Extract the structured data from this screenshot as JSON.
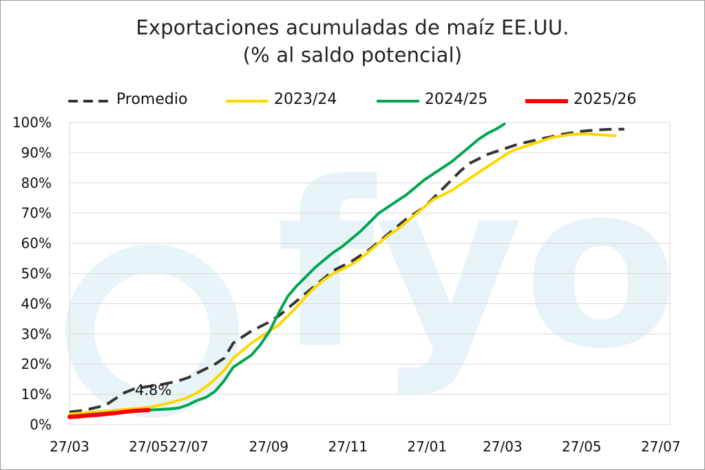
{
  "chart_data": {
    "type": "line",
    "title": "Exportaciones acumuladas de maíz EE.UU.",
    "subtitle": "(% al saldo potencial)",
    "xlabel": "",
    "ylabel": "",
    "x_range": [
      0,
      61
    ],
    "ylim": [
      0,
      100
    ],
    "y_ticks": [
      {
        "v": 0,
        "label": "0%"
      },
      {
        "v": 10,
        "label": "10%"
      },
      {
        "v": 20,
        "label": "20%"
      },
      {
        "v": 30,
        "label": "30%"
      },
      {
        "v": 40,
        "label": "40%"
      },
      {
        "v": 50,
        "label": "50%"
      },
      {
        "v": 60,
        "label": "60%"
      },
      {
        "v": 70,
        "label": "70%"
      },
      {
        "v": 80,
        "label": "80%"
      },
      {
        "v": 90,
        "label": "90%"
      },
      {
        "v": 100,
        "label": "100%"
      }
    ],
    "x_ticks": [
      {
        "v": 0,
        "label": "27/03"
      },
      {
        "v": 8.7,
        "label": "27/05"
      },
      {
        "v": 13.1,
        "label": "27/07"
      },
      {
        "v": 21.9,
        "label": "27/09"
      },
      {
        "v": 30.6,
        "label": "27/11"
      },
      {
        "v": 39.3,
        "label": "27/01"
      },
      {
        "v": 47.6,
        "label": "27/03"
      },
      {
        "v": 56.3,
        "label": "27/05"
      },
      {
        "v": 65,
        "label": "27/07"
      }
    ],
    "grid": true,
    "legend_position": "top",
    "annotation": {
      "text": "4.8%",
      "x": 8.5,
      "y": 11.5
    },
    "watermark": "fyo",
    "series": [
      {
        "name": "Promedio",
        "color": "#333333",
        "dash": true,
        "points": [
          [
            0,
            4.2
          ],
          [
            1,
            4.5
          ],
          [
            2,
            5
          ],
          [
            3,
            5.7
          ],
          [
            4,
            6.5
          ],
          [
            5,
            8.5
          ],
          [
            6,
            10.5
          ],
          [
            7,
            11.7
          ],
          [
            8,
            12.3
          ],
          [
            9,
            12.8
          ],
          [
            10,
            13.2
          ],
          [
            11,
            13.8
          ],
          [
            12,
            14.5
          ],
          [
            13,
            15.5
          ],
          [
            14,
            17
          ],
          [
            15,
            18.5
          ],
          [
            16,
            20
          ],
          [
            17,
            22
          ],
          [
            18,
            27
          ],
          [
            19,
            29
          ],
          [
            20,
            31
          ],
          [
            21,
            32.5
          ],
          [
            22,
            34
          ],
          [
            23,
            36
          ],
          [
            24,
            38.5
          ],
          [
            25,
            41
          ],
          [
            26,
            43.5
          ],
          [
            27,
            46
          ],
          [
            28,
            48.5
          ],
          [
            29,
            51
          ],
          [
            30,
            52.5
          ],
          [
            31,
            54
          ],
          [
            32,
            56
          ],
          [
            33,
            58
          ],
          [
            34,
            60.5
          ],
          [
            35,
            63
          ],
          [
            36,
            65.5
          ],
          [
            37,
            68
          ],
          [
            38,
            70
          ],
          [
            39,
            72
          ],
          [
            40,
            75
          ],
          [
            41,
            78
          ],
          [
            42,
            81
          ],
          [
            43,
            84
          ],
          [
            44,
            86.5
          ],
          [
            45,
            88
          ],
          [
            46,
            89.5
          ],
          [
            47,
            90.5
          ],
          [
            48,
            91.5
          ],
          [
            49,
            92.5
          ],
          [
            50,
            93.3
          ],
          [
            51,
            94
          ],
          [
            52,
            94.7
          ],
          [
            53,
            95.3
          ],
          [
            54,
            96
          ],
          [
            55,
            96.5
          ],
          [
            56,
            97
          ],
          [
            57,
            97.3
          ],
          [
            58,
            97.5
          ],
          [
            59,
            97.7
          ],
          [
            60,
            97.8
          ],
          [
            61,
            97.8
          ]
        ]
      },
      {
        "name": "2023/24",
        "color": "#FFD700",
        "dash": false,
        "points": [
          [
            0,
            3.5
          ],
          [
            2,
            4
          ],
          [
            4,
            4.5
          ],
          [
            6,
            5
          ],
          [
            8,
            5.5
          ],
          [
            9,
            5.8
          ],
          [
            10,
            6.5
          ],
          [
            11,
            7.2
          ],
          [
            12,
            8
          ],
          [
            13,
            9
          ],
          [
            14,
            10.5
          ],
          [
            15,
            12.5
          ],
          [
            16,
            15
          ],
          [
            17,
            18
          ],
          [
            18,
            22
          ],
          [
            19,
            24.5
          ],
          [
            20,
            27
          ],
          [
            21,
            29
          ],
          [
            22,
            31
          ],
          [
            23,
            33
          ],
          [
            24,
            36
          ],
          [
            25,
            39
          ],
          [
            26,
            42.5
          ],
          [
            27,
            45.5
          ],
          [
            28,
            48
          ],
          [
            29,
            50
          ],
          [
            30,
            51.5
          ],
          [
            31,
            53
          ],
          [
            32,
            55
          ],
          [
            33,
            57.5
          ],
          [
            34,
            60
          ],
          [
            35,
            62.5
          ],
          [
            36,
            64.5
          ],
          [
            37,
            67
          ],
          [
            38,
            69.5
          ],
          [
            39,
            72
          ],
          [
            40,
            74.5
          ],
          [
            41,
            76
          ],
          [
            42,
            77.5
          ],
          [
            43,
            79.5
          ],
          [
            44,
            81.5
          ],
          [
            45,
            83.5
          ],
          [
            46,
            85.5
          ],
          [
            47,
            87.5
          ],
          [
            48,
            89.5
          ],
          [
            49,
            91
          ],
          [
            50,
            92
          ],
          [
            51,
            93
          ],
          [
            52,
            94
          ],
          [
            53,
            95
          ],
          [
            54,
            95.5
          ],
          [
            55,
            96
          ],
          [
            56,
            96.2
          ],
          [
            57,
            96.2
          ],
          [
            58,
            96
          ],
          [
            59,
            95.8
          ],
          [
            60,
            95.6
          ]
        ]
      },
      {
        "name": "2024/25",
        "color": "#00A550",
        "dash": false,
        "points": [
          [
            0,
            2.8
          ],
          [
            2,
            3.3
          ],
          [
            4,
            3.8
          ],
          [
            6,
            4.3
          ],
          [
            8,
            4.7
          ],
          [
            10,
            5
          ],
          [
            11,
            5.2
          ],
          [
            12,
            5.5
          ],
          [
            13,
            6.5
          ],
          [
            14,
            8
          ],
          [
            15,
            9
          ],
          [
            16,
            11
          ],
          [
            17,
            14.5
          ],
          [
            18,
            19
          ],
          [
            19,
            21
          ],
          [
            20,
            23
          ],
          [
            21,
            26.5
          ],
          [
            22,
            31
          ],
          [
            23,
            37
          ],
          [
            24,
            42.5
          ],
          [
            25,
            46
          ],
          [
            26,
            49
          ],
          [
            27,
            52
          ],
          [
            28,
            54.5
          ],
          [
            29,
            57
          ],
          [
            30,
            59
          ],
          [
            31,
            61.5
          ],
          [
            32,
            64
          ],
          [
            33,
            67
          ],
          [
            34,
            70
          ],
          [
            35,
            72
          ],
          [
            36,
            74
          ],
          [
            37,
            76
          ],
          [
            38,
            78.5
          ],
          [
            39,
            81
          ],
          [
            40,
            83
          ],
          [
            41,
            85
          ],
          [
            42,
            87
          ],
          [
            43,
            89.5
          ],
          [
            44,
            92
          ],
          [
            45,
            94.5
          ],
          [
            46,
            96.5
          ],
          [
            47,
            98
          ],
          [
            47.8,
            99.5
          ]
        ]
      },
      {
        "name": "2025/26",
        "color": "#FF0000",
        "dash": false,
        "points": [
          [
            0,
            2.5
          ],
          [
            1,
            2.7
          ],
          [
            2,
            3
          ],
          [
            3,
            3.2
          ],
          [
            4,
            3.5
          ],
          [
            5,
            3.8
          ],
          [
            6,
            4.2
          ],
          [
            7,
            4.5
          ],
          [
            8,
            4.7
          ],
          [
            8.7,
            4.8
          ]
        ]
      }
    ]
  }
}
